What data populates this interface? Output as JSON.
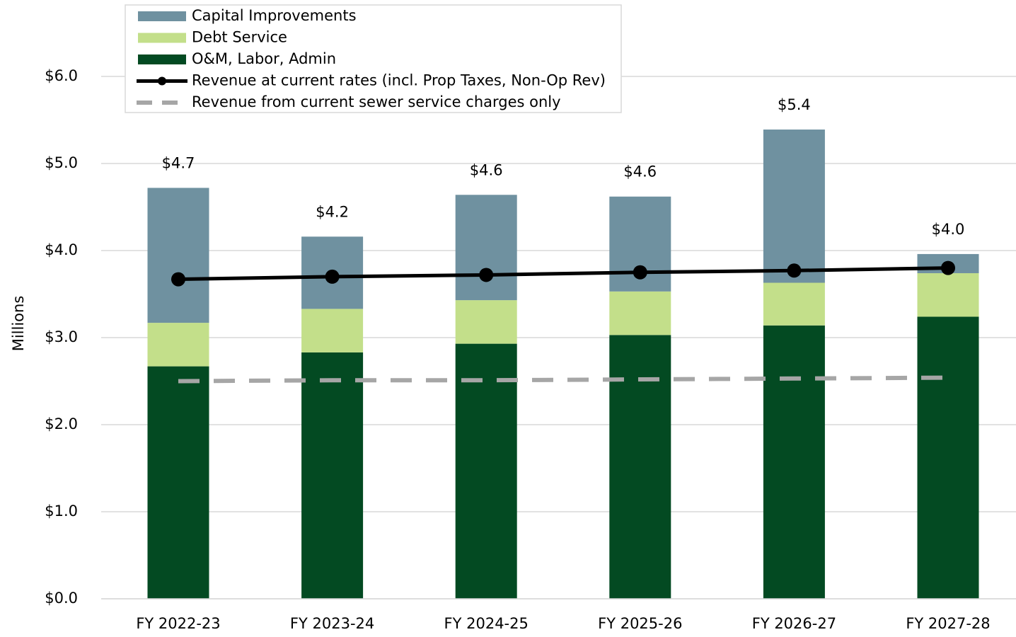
{
  "chart_data": {
    "type": "bar",
    "stacked": true,
    "y_axis_label": "Millions",
    "categories": [
      "FY 2022-23",
      "FY 2023-24",
      "FY 2024-25",
      "FY 2025-26",
      "FY 2026-27",
      "FY 2027-28"
    ],
    "series": [
      {
        "name": "O&M, Labor, Admin",
        "type": "bar",
        "color": "#034a22",
        "values": [
          2.67,
          2.83,
          2.93,
          3.03,
          3.14,
          3.24
        ]
      },
      {
        "name": "Debt Service",
        "type": "bar",
        "color": "#c3df8a",
        "values": [
          0.5,
          0.5,
          0.5,
          0.5,
          0.49,
          0.5
        ]
      },
      {
        "name": "Capital Improvements",
        "type": "bar",
        "color": "#6f91a0",
        "values": [
          1.55,
          0.83,
          1.21,
          1.09,
          1.76,
          0.22
        ]
      },
      {
        "name": "Revenue at current rates (incl. Prop Taxes, Non-Op Rev)",
        "type": "line",
        "color": "#000000",
        "markers": true,
        "dashed": false,
        "values": [
          3.67,
          3.7,
          3.72,
          3.75,
          3.77,
          3.8
        ]
      },
      {
        "name": "Revenue from current sewer service charges only",
        "type": "line",
        "color": "#a6a6a6",
        "markers": false,
        "dashed": true,
        "values": [
          2.5,
          2.51,
          2.51,
          2.52,
          2.53,
          2.54
        ]
      }
    ],
    "totals": {
      "values": [
        4.72,
        4.16,
        4.64,
        4.62,
        5.39,
        3.96
      ],
      "value_labels": [
        "$4.7",
        "$4.2",
        "$4.6",
        "$4.6",
        "$5.4",
        "$4.0"
      ]
    },
    "legend_order": [
      2,
      1,
      0,
      3,
      4
    ],
    "legend_position": "top-left",
    "ylim": [
      0,
      6
    ],
    "yticks": [
      {
        "value": 0,
        "label": "$0.0"
      },
      {
        "value": 1,
        "label": "$1.0"
      },
      {
        "value": 2,
        "label": "$2.0"
      },
      {
        "value": 3,
        "label": "$3.0"
      },
      {
        "value": 4,
        "label": "$4.0"
      },
      {
        "value": 5,
        "label": "$5.0"
      },
      {
        "value": 6,
        "label": "$6.0"
      }
    ],
    "grid": true
  }
}
